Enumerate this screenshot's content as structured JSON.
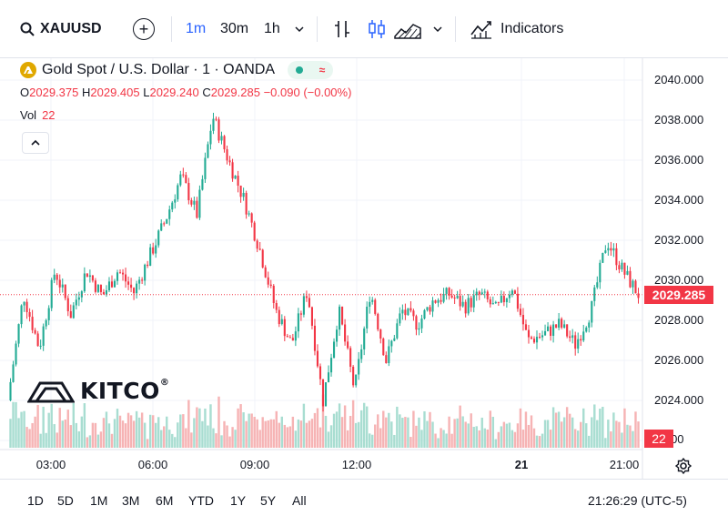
{
  "toolbar": {
    "symbol": "XAUUSD",
    "timeframes": [
      "1m",
      "30m",
      "1h"
    ],
    "indicators_label": "Indicators",
    "accent": "#2962ff"
  },
  "legend": {
    "title": "Gold Spot / U.S. Dollar · 1 · OANDA",
    "ohlc": {
      "o_key": "O",
      "o": "2029.375",
      "h_key": "H",
      "h": "2029.405",
      "l_key": "L",
      "l": "2029.240",
      "c_key": "C",
      "c": "2029.285",
      "change": "−0.090 (−0.00%)"
    },
    "vol_label": "Vol",
    "vol_value": "22"
  },
  "price_axis": {
    "labels": [
      "2040.000",
      "2038.000",
      "2036.000",
      "2034.000",
      "2032.000",
      "2030.000",
      "2028.000",
      "2026.000",
      "2024.000",
      "2.000"
    ],
    "current_price": "2029.285",
    "volume_badge": "22"
  },
  "time_axis": {
    "labels": [
      "03:00",
      "06:00",
      "09:00",
      "12:00",
      "21",
      "21:00"
    ]
  },
  "bottom": {
    "ranges": [
      "1D",
      "5D",
      "1M",
      "3M",
      "6M",
      "YTD",
      "1Y",
      "5Y",
      "All"
    ],
    "clock": "21:26:29 (UTC-5)"
  },
  "watermark": {
    "text": "KITCO",
    "mark": "®"
  },
  "colors": {
    "up": "#22ab94",
    "down": "#f23645",
    "up_vol": "#a8ddd1",
    "down_vol": "#f6b3b4",
    "grid": "#f0f3fa"
  },
  "chart_data": {
    "type": "candlestick",
    "symbol": "XAUUSD",
    "interval": "1m",
    "ylim": [
      2023.0,
      2041.0
    ],
    "x": [
      "start",
      "03:00",
      "06:00",
      "09:00",
      "12:00",
      "21",
      "21:00",
      "end"
    ],
    "path_keypoints": [
      2024.0,
      2029.3,
      2026.6,
      2030.5,
      2028.3,
      2030.5,
      2029.2,
      2030.5,
      2029.4,
      2031.2,
      2033.0,
      2035.2,
      2033.3,
      2038.2,
      2036.0,
      2034.0,
      2031.5,
      2028.5,
      2026.8,
      2029.5,
      2024.0,
      2028.5,
      2024.5,
      2029.5,
      2026.0,
      2028.5,
      2027.8,
      2029.0,
      2029.3,
      2028.7,
      2029.3,
      2028.5,
      2029.7,
      2027.0,
      2027.3,
      2027.8,
      2026.8,
      2028.5,
      2032.0,
      2030.5,
      2029.3
    ],
    "last_price": 2029.285,
    "last_volume": 22
  }
}
